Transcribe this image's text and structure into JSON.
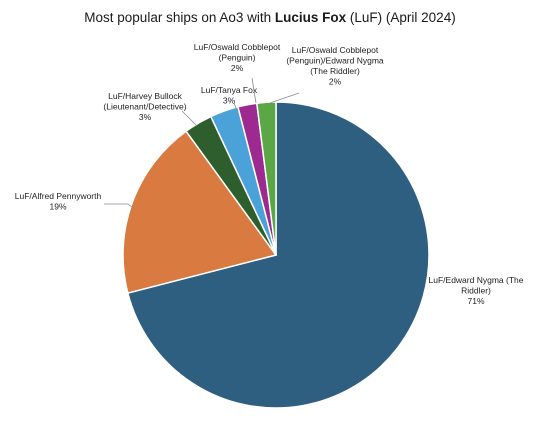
{
  "chart_data": {
    "type": "pie",
    "title": {
      "prefix": "Most popular ships on Ao3 with ",
      "bold": "Lucius Fox",
      "suffix": " (LuF) (April 2024)"
    },
    "slices": [
      {
        "label": [
          "LuF/Edward Nygma (The",
          "Riddler)"
        ],
        "value": 71,
        "value_label": "71%",
        "color": "#2e5e80"
      },
      {
        "label": [
          "LuF/Alfred Pennyworth"
        ],
        "value": 19,
        "value_label": "19%",
        "color": "#d97a41"
      },
      {
        "label": [
          "LuF/Harvey Bullock",
          "(Lieutenant/Detective)"
        ],
        "value": 3,
        "value_label": "3%",
        "color": "#2f5e2e"
      },
      {
        "label": [
          "LuF/Tanya Fox"
        ],
        "value": 3,
        "value_label": "3%",
        "color": "#4aa2d8"
      },
      {
        "label": [
          "LuF/Oswald Cobblepot",
          "(Penguin)"
        ],
        "value": 2,
        "value_label": "2%",
        "color": "#9c2a90"
      },
      {
        "label": [
          "LuF/Oswald Cobblepot",
          "(Penguin)/Edward Nygma",
          "(The Riddler)"
        ],
        "value": 2,
        "value_label": "2%",
        "color": "#5ca745"
      }
    ],
    "start": "12 o'clock",
    "direction": "clockwise",
    "legend": "none"
  }
}
